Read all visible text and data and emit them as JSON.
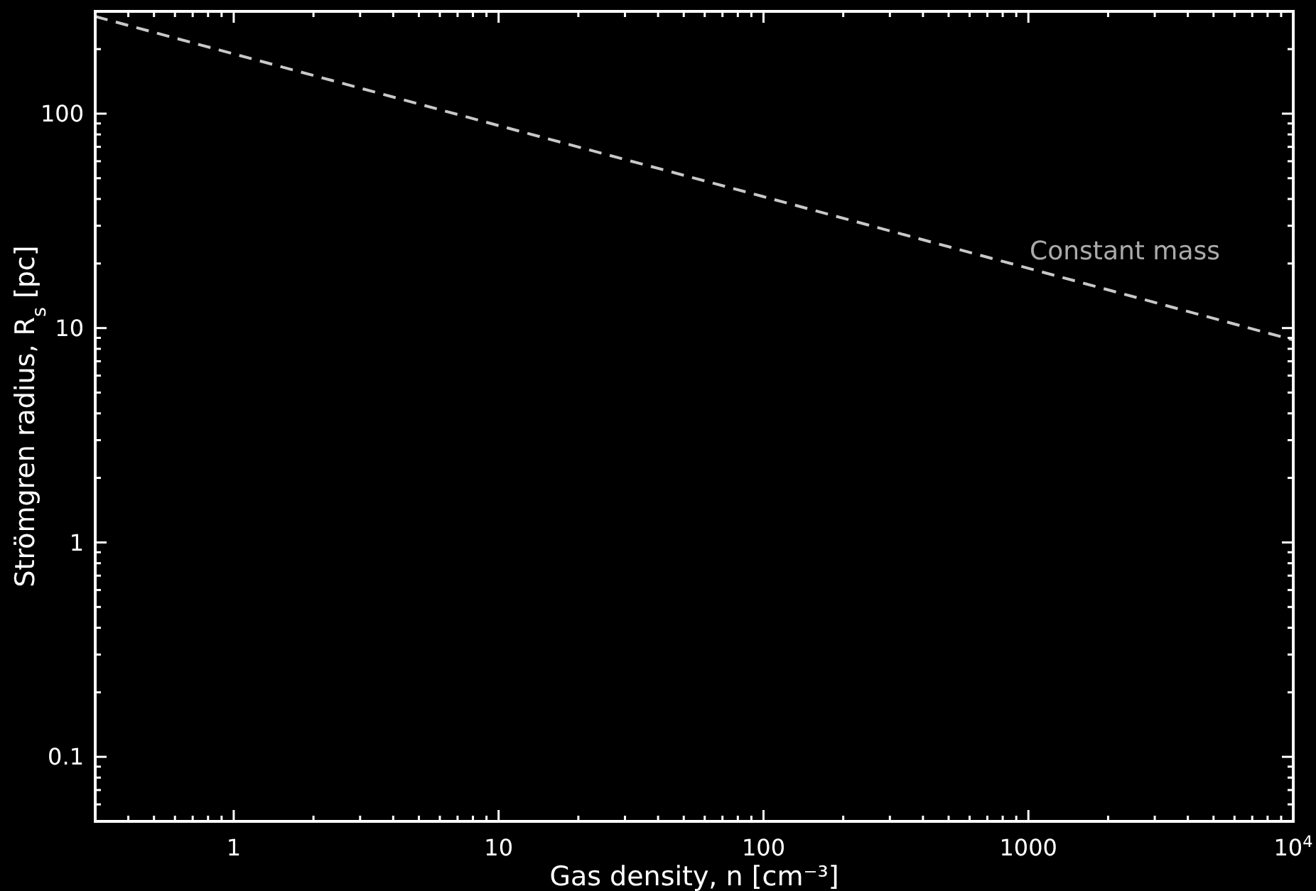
{
  "chart_data": {
    "type": "line",
    "xlabel": "Gas density, n [cm⁻³]",
    "ylabel": "Strömgren radius, R$_{s}$ [pc]",
    "log": "xy",
    "xlim": [
      0.3,
      10000
    ],
    "ylim": [
      0.05,
      300
    ],
    "xticks": [
      {
        "value": 0.3,
        "label": null
      },
      {
        "value": 0.4,
        "label": null
      },
      {
        "value": 0.5,
        "label": null
      },
      {
        "value": 0.6,
        "label": null
      },
      {
        "value": 0.7,
        "label": null
      },
      {
        "value": 0.8,
        "label": null
      },
      {
        "value": 0.9,
        "label": null
      },
      1,
      {
        "value": 2,
        "label": null
      },
      {
        "value": 3,
        "label": null
      },
      {
        "value": 4,
        "label": null
      },
      {
        "value": 5,
        "label": null
      },
      {
        "value": 6,
        "label": null
      },
      {
        "value": 7,
        "label": null
      },
      {
        "value": 8,
        "label": null
      },
      {
        "value": 9,
        "label": null
      },
      10,
      {
        "value": 20,
        "label": null
      },
      {
        "value": 30,
        "label": null
      },
      {
        "value": 40,
        "label": null
      },
      {
        "value": 50,
        "label": null
      },
      {
        "value": 60,
        "label": null
      },
      {
        "value": 70,
        "label": null
      },
      {
        "value": 80,
        "label": null
      },
      {
        "value": 90,
        "label": null
      },
      100,
      {
        "value": 200,
        "label": null
      },
      {
        "value": 300,
        "label": null
      },
      {
        "value": 400,
        "label": null
      },
      {
        "value": 500,
        "label": null
      },
      {
        "value": 600,
        "label": null
      },
      {
        "value": 700,
        "label": null
      },
      {
        "value": 800,
        "label": null
      },
      {
        "value": 900,
        "label": null
      },
      1000,
      {
        "value": 2000,
        "label": null
      },
      {
        "value": 3000,
        "label": null
      },
      {
        "value": 4000,
        "label": null
      },
      {
        "value": 5000,
        "label": null
      },
      {
        "value": 6000,
        "label": null
      },
      {
        "value": 7000,
        "label": null
      },
      {
        "value": 8000,
        "label": null
      },
      {
        "value": 9000,
        "label": null
      },
      {
        "value": 10000,
        "label": "10$^{4}$"
      }
    ],
    "yticks": [
      {
        "value": 0.05,
        "label": null
      },
      {
        "value": 0.06,
        "label": null
      },
      {
        "value": 0.07,
        "label": null
      },
      {
        "value": 0.08,
        "label": null
      },
      {
        "value": 0.09,
        "label": null
      },
      0.1,
      {
        "value": 0.2,
        "label": null
      },
      {
        "value": 0.3,
        "label": null
      },
      {
        "value": 0.4,
        "label": null
      },
      {
        "value": 0.5,
        "label": null
      },
      {
        "value": 0.6,
        "label": null
      },
      {
        "value": 0.7,
        "label": null
      },
      {
        "value": 0.8,
        "label": null
      },
      {
        "value": 0.9,
        "label": null
      },
      1,
      {
        "value": 2,
        "label": null
      },
      {
        "value": 3,
        "label": null
      },
      {
        "value": 4,
        "label": null
      },
      {
        "value": 5,
        "label": null
      },
      {
        "value": 6,
        "label": null
      },
      {
        "value": 7,
        "label": null
      },
      {
        "value": 8,
        "label": null
      },
      {
        "value": 9,
        "label": null
      },
      10,
      {
        "value": 20,
        "label": null
      },
      {
        "value": 30,
        "label": null
      },
      {
        "value": 40,
        "label": null
      },
      {
        "value": 50,
        "label": null
      },
      {
        "value": 60,
        "label": null
      },
      {
        "value": 70,
        "label": null
      },
      {
        "value": 80,
        "label": null
      },
      {
        "value": 90,
        "label": null
      },
      100,
      {
        "value": 200,
        "label": null
      },
      {
        "value": 300,
        "label": null
      }
    ],
    "x": [
      0.3,
      1,
      10,
      100,
      1000,
      10000
    ],
    "series": [
      {
        "color": "#c8c8c8",
        "line_style": "dashed",
        "values": [
          284,
          190,
          88,
          41,
          19,
          8.8
        ]
      }
    ],
    "annotations": [
      "Constant mass"
    ],
    "grid": false
  }
}
